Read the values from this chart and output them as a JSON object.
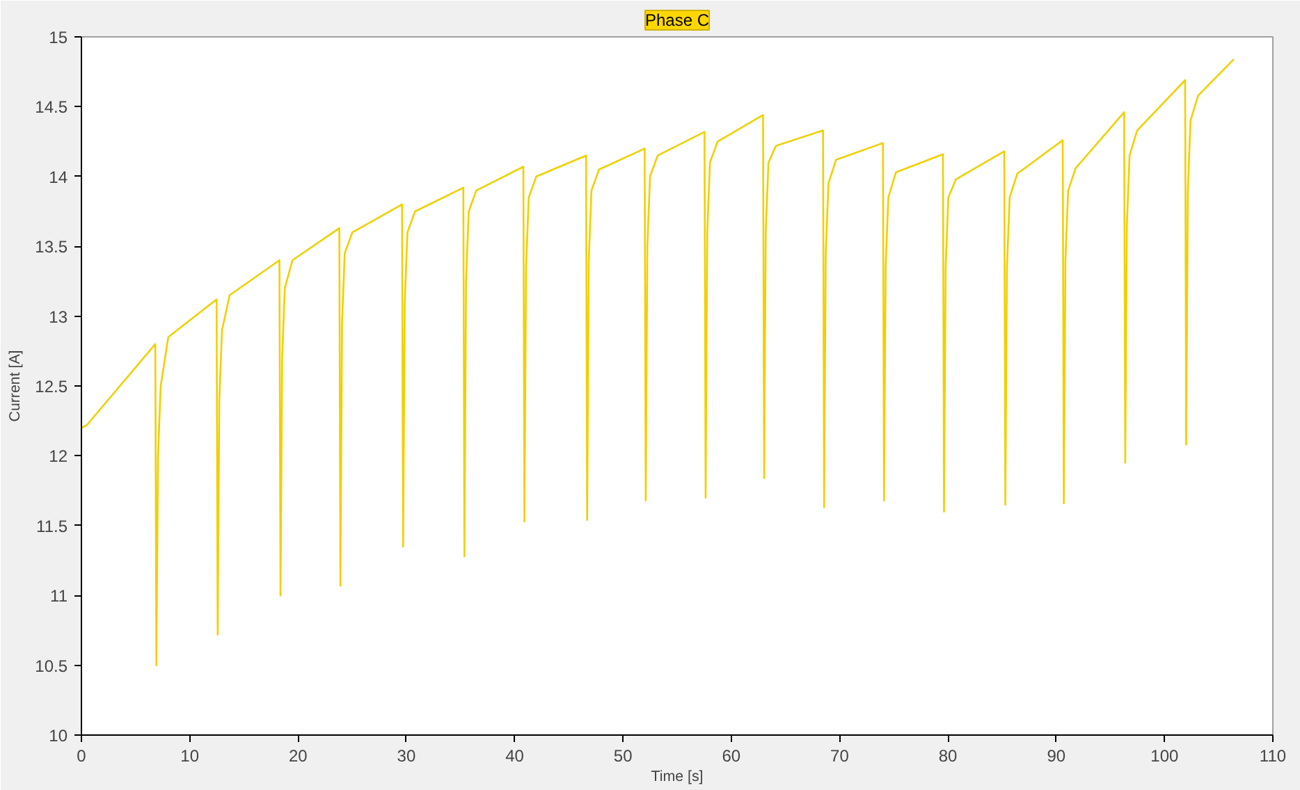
{
  "chart_data": {
    "type": "line",
    "title": "Phase C",
    "xlabel": "Time [s]",
    "ylabel": "Current [A]",
    "xlim": [
      0,
      110
    ],
    "xticks": [
      0,
      10,
      20,
      30,
      40,
      50,
      60,
      70,
      80,
      90,
      100,
      110
    ],
    "ylim": [
      10,
      15
    ],
    "yticks": [
      10,
      10.5,
      11,
      11.5,
      12,
      12.5,
      13,
      13.5,
      14,
      14.5,
      15
    ],
    "grid": false,
    "series": [
      {
        "color": "#f0d000",
        "x": [
          0,
          0.5,
          6.82,
          6.92,
          7.07,
          7.32,
          8.02,
          12.48,
          12.58,
          12.73,
          12.98,
          13.68,
          18.28,
          18.38,
          18.53,
          18.78,
          19.48,
          23.81,
          23.91,
          24.06,
          24.31,
          25.01,
          29.6,
          29.7,
          29.85,
          30.1,
          30.8,
          35.26,
          35.36,
          35.51,
          35.76,
          36.46,
          40.8,
          40.9,
          41.05,
          41.3,
          42.0,
          46.59,
          46.69,
          46.84,
          47.09,
          47.79,
          52.0,
          52.1,
          52.25,
          52.5,
          53.2,
          57.53,
          57.63,
          57.78,
          58.03,
          58.73,
          62.93,
          63.03,
          63.18,
          63.43,
          64.13,
          68.47,
          68.57,
          68.72,
          68.97,
          69.67,
          74.0,
          74.1,
          74.25,
          74.5,
          75.2,
          79.54,
          79.64,
          79.79,
          80.04,
          80.74,
          85.2,
          85.3,
          85.45,
          85.7,
          86.4,
          90.6,
          90.7,
          90.85,
          91.1,
          91.8,
          96.27,
          96.37,
          96.52,
          96.77,
          97.47,
          101.9,
          102.0,
          102.15,
          102.4,
          103.1,
          106.4
        ],
        "values": [
          12.2,
          12.22,
          12.8,
          10.5,
          12.0,
          12.5,
          12.85,
          13.12,
          10.72,
          12.4,
          12.9,
          13.15,
          13.4,
          11.0,
          12.7,
          13.2,
          13.4,
          13.63,
          11.07,
          12.95,
          13.45,
          13.6,
          13.8,
          11.35,
          13.1,
          13.6,
          13.75,
          13.92,
          11.28,
          13.25,
          13.75,
          13.9,
          14.07,
          11.53,
          13.35,
          13.85,
          14.0,
          14.15,
          11.54,
          13.4,
          13.9,
          14.05,
          14.2,
          11.68,
          13.5,
          14.0,
          14.15,
          14.32,
          11.7,
          13.6,
          14.1,
          14.25,
          14.44,
          11.84,
          13.6,
          14.1,
          14.22,
          14.33,
          11.63,
          13.45,
          13.95,
          14.12,
          14.24,
          11.68,
          13.35,
          13.85,
          14.03,
          14.16,
          11.6,
          13.35,
          13.85,
          13.98,
          14.18,
          11.65,
          13.35,
          13.85,
          14.02,
          14.26,
          11.66,
          13.4,
          13.9,
          14.06,
          14.46,
          11.95,
          13.65,
          14.15,
          14.33,
          14.69,
          12.08,
          13.9,
          14.4,
          14.58,
          14.84
        ]
      }
    ]
  }
}
